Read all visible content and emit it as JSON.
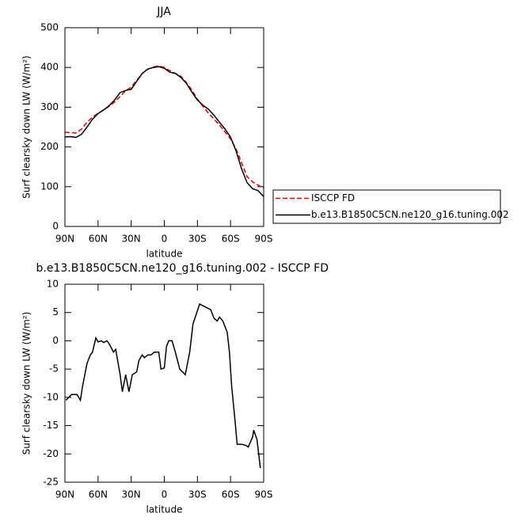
{
  "chart_data": [
    {
      "type": "line",
      "title": "JJA",
      "xlabel": "latitude",
      "ylabel": "Surf clearsky down LW (W/m²)",
      "x": [
        90,
        85,
        80,
        75,
        70,
        65,
        60,
        55,
        50,
        45,
        40,
        35,
        30,
        25,
        20,
        15,
        10,
        5,
        0,
        -5,
        -10,
        -15,
        -20,
        -25,
        -30,
        -35,
        -40,
        -45,
        -50,
        -55,
        -60,
        -65,
        -70,
        -75,
        -80,
        -85,
        -90
      ],
      "series": [
        {
          "name": "ISCCP FD",
          "color": "#e00000",
          "dashed": true,
          "values": [
            237,
            236,
            235,
            245,
            262,
            275,
            285,
            293,
            302,
            313,
            327,
            342,
            350,
            368,
            385,
            395,
            401,
            404,
            400,
            392,
            385,
            378,
            362,
            343,
            320,
            302,
            285,
            270,
            255,
            238,
            220,
            195,
            160,
            125,
            112,
            104,
            96
          ]
        },
        {
          "name": "b.e13.B1850C5CN.ne120_g16.tuning.002",
          "color": "#000000",
          "dashed": false,
          "values": [
            225,
            226,
            224,
            232,
            250,
            270,
            284,
            293,
            304,
            318,
            337,
            342,
            345,
            365,
            385,
            396,
            400,
            402,
            398,
            388,
            385,
            375,
            360,
            338,
            318,
            305,
            295,
            280,
            262,
            245,
            225,
            190,
            145,
            110,
            95,
            90,
            75
          ]
        }
      ],
      "xlim": [
        90,
        -90
      ],
      "xticks": [
        {
          "value": 90,
          "label": "90N"
        },
        {
          "value": 60,
          "label": "60N"
        },
        {
          "value": 30,
          "label": "30N"
        },
        0,
        {
          "value": -30,
          "label": "30S"
        },
        {
          "value": -60,
          "label": "60S"
        },
        {
          "value": -90,
          "label": "90S"
        }
      ],
      "ylim": [
        0,
        500
      ],
      "yticks": [
        0,
        100,
        200,
        300,
        400,
        500
      ],
      "legend": "right"
    },
    {
      "type": "line",
      "title": "b.e13.B1850C5CN.ne120_g16.tuning.002 - ISCCP FD",
      "xlabel": "latitude",
      "ylabel": "Surf clearsky down LW (W/m²)",
      "x": [
        89,
        84,
        79,
        76,
        74,
        70,
        67,
        65,
        62,
        60,
        57,
        55,
        52,
        50,
        46,
        44,
        40,
        38,
        35,
        32,
        29,
        25,
        23,
        20,
        18,
        15,
        12,
        9,
        5,
        3,
        0,
        -2,
        -4,
        -7,
        -10,
        -14,
        -19,
        -23,
        -26,
        -32,
        -37,
        -42,
        -45,
        -48,
        -50,
        -53,
        -57,
        -59,
        -61,
        -64,
        -66,
        -70,
        -74,
        -76,
        -80,
        -81,
        -84,
        -87
      ],
      "series": [
        {
          "color": "#000000",
          "dashed": false,
          "values": [
            -10.5,
            -9.5,
            -9.5,
            -10.5,
            -8,
            -4,
            -2.5,
            -2,
            0.5,
            -0.2,
            0,
            -0.3,
            0,
            -0.5,
            -2,
            -1.5,
            -6,
            -9,
            -6,
            -9,
            -6,
            -5.5,
            -3.5,
            -2.5,
            -3,
            -2.5,
            -2.5,
            -2,
            -2,
            -5,
            -4.8,
            -1,
            0,
            0,
            -2,
            -5,
            -6,
            -2,
            3,
            6.5,
            6,
            5.5,
            4,
            3.5,
            4.2,
            3.5,
            1.5,
            -2,
            -8,
            -14,
            -18.3,
            -18.3,
            -18.5,
            -18.8,
            -17,
            -15.8,
            -17.5,
            -22.5
          ]
        }
      ],
      "xlim": [
        90,
        -90
      ],
      "xticks": [
        {
          "value": 90,
          "label": "90N"
        },
        {
          "value": 60,
          "label": "60N"
        },
        {
          "value": 30,
          "label": "30N"
        },
        0,
        {
          "value": -30,
          "label": "30S"
        },
        {
          "value": -60,
          "label": "60S"
        },
        {
          "value": -90,
          "label": "90S"
        }
      ],
      "ylim": [
        -25,
        10
      ],
      "yticks": [
        -25,
        -20,
        -15,
        -10,
        -5,
        0,
        5,
        10
      ]
    }
  ]
}
